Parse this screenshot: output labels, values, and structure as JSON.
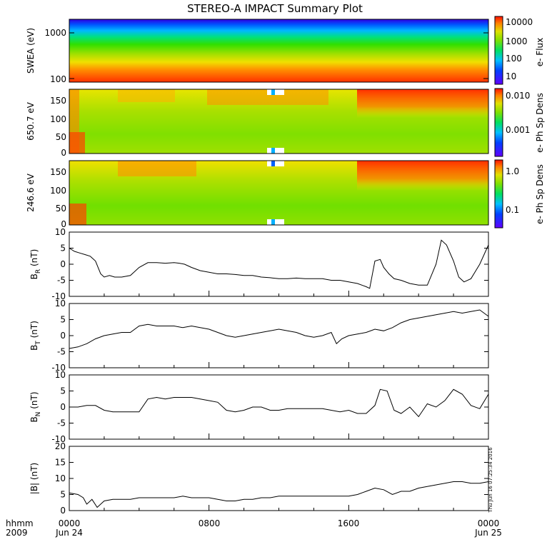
{
  "title": "STEREO-A IMPACT Summary Plot",
  "time_axis": {
    "row1_labels": [
      "0000",
      "0800",
      "1600",
      "0000"
    ],
    "row2_labels": [
      "Jun 24",
      "Jun 25"
    ],
    "corner_row1": "hhmm",
    "corner_row2": "2009",
    "hours": [
      0,
      8,
      16,
      24
    ]
  },
  "timestamp": "Thu Jun 16 07:25:34 2016",
  "spectrograms": [
    {
      "ylabel": "SWEA (eV)",
      "cbar_label": "e- Flux",
      "y_scale": "log",
      "yticks": [
        "1000",
        "100"
      ],
      "cbar_ticks": [
        "10000",
        "1000",
        "100",
        "10"
      ]
    },
    {
      "ylabel": "650.7 eV",
      "cbar_label": "e- Ph Sp Dens",
      "y_scale": "linear",
      "yticks": [
        "150",
        "100",
        "50",
        "0"
      ],
      "cbar_ticks": [
        "0.010",
        "0.001"
      ]
    },
    {
      "ylabel": "246.6 eV",
      "cbar_label": "e- Ph Sp Dens",
      "y_scale": "linear",
      "yticks": [
        "150",
        "100",
        "50",
        "0"
      ],
      "cbar_ticks": [
        "1.0",
        "0.1"
      ]
    }
  ],
  "colors": {
    "line": "#000000",
    "spectrum": [
      "#6000ff",
      "#0040ff",
      "#00c0ff",
      "#00e060",
      "#80e000",
      "#e0e000",
      "#ff8000",
      "#ff2000"
    ]
  },
  "chart_data": [
    {
      "type": "line",
      "id": "BR",
      "ylabel": "B",
      "ylabel_sub": "R",
      "ylabel_unit": " (nT)",
      "ylim": [
        -10,
        10
      ],
      "yticks": [
        "10",
        "5",
        "0",
        "-5",
        "-10"
      ],
      "x": [
        0,
        0.3,
        0.6,
        0.9,
        1.2,
        1.5,
        1.8,
        2,
        2.3,
        2.6,
        3,
        3.5,
        4,
        4.5,
        5,
        5.5,
        6,
        6.3,
        6.6,
        7,
        7.5,
        8,
        8.5,
        9,
        9.5,
        10,
        10.5,
        11,
        11.5,
        12,
        12.5,
        13,
        13.5,
        14,
        14.5,
        15,
        15.5,
        16,
        16.5,
        17,
        17.2,
        17.5,
        17.8,
        18,
        18.3,
        18.6,
        19,
        19.5,
        20,
        20.5,
        21,
        21.3,
        21.6,
        22,
        22.3,
        22.6,
        23,
        23.5,
        24
      ],
      "y": [
        5,
        4,
        3.5,
        3,
        2.5,
        1,
        -3,
        -4,
        -3.5,
        -4,
        -4,
        -3.5,
        -1,
        0.5,
        0.5,
        0.3,
        0.5,
        0.3,
        0,
        -1,
        -2,
        -2.5,
        -3,
        -3,
        -3.2,
        -3.5,
        -3.5,
        -4,
        -4.2,
        -4.5,
        -4.5,
        -4.3,
        -4.5,
        -4.5,
        -4.5,
        -5,
        -5,
        -5.5,
        -6,
        -7,
        -7.5,
        1,
        1.5,
        -1,
        -3,
        -4.5,
        -5,
        -6,
        -6.5,
        -6.5,
        0,
        7.5,
        6,
        1,
        -4,
        -5.5,
        -4.5,
        0,
        6
      ]
    },
    {
      "type": "line",
      "id": "BT",
      "ylabel": "B",
      "ylabel_sub": "T",
      "ylabel_unit": " (nT)",
      "ylim": [
        -10,
        10
      ],
      "yticks": [
        "10",
        "5",
        "0",
        "-5",
        "-10"
      ],
      "x": [
        0,
        0.5,
        1,
        1.5,
        2,
        2.5,
        3,
        3.5,
        4,
        4.5,
        5,
        5.5,
        6,
        6.5,
        7,
        7.5,
        8,
        8.5,
        9,
        9.5,
        10,
        10.5,
        11,
        11.5,
        12,
        12.5,
        13,
        13.5,
        14,
        14.5,
        15,
        15.3,
        15.6,
        16,
        16.5,
        17,
        17.5,
        18,
        18.5,
        19,
        19.5,
        20,
        20.5,
        21,
        21.5,
        22,
        22.5,
        23,
        23.5,
        24
      ],
      "y": [
        -4,
        -3.5,
        -2.5,
        -1,
        0,
        0.5,
        1,
        1,
        3,
        3.5,
        3,
        3,
        3,
        2.5,
        3,
        2.5,
        2,
        1,
        0,
        -0.5,
        0,
        0.5,
        1,
        1.5,
        2,
        1.5,
        1,
        0,
        -0.5,
        0,
        1,
        -2.5,
        -1,
        0,
        0.5,
        1,
        2,
        1.5,
        2.5,
        4,
        5,
        5.5,
        6,
        6.5,
        7,
        7.5,
        7,
        7.5,
        8,
        6
      ]
    },
    {
      "type": "line",
      "id": "BN",
      "ylabel": "B",
      "ylabel_sub": "N",
      "ylabel_unit": " (nT)",
      "ylim": [
        -10,
        10
      ],
      "yticks": [
        "10",
        "5",
        "0",
        "-5",
        "-10"
      ],
      "x": [
        0,
        0.5,
        1,
        1.5,
        2,
        2.5,
        3,
        3.5,
        4,
        4.5,
        5,
        5.5,
        6,
        6.5,
        7,
        7.5,
        8,
        8.5,
        9,
        9.5,
        10,
        10.5,
        11,
        11.5,
        12,
        12.5,
        13,
        13.5,
        14,
        14.5,
        15,
        15.5,
        16,
        16.5,
        17,
        17.5,
        17.8,
        18.2,
        18.6,
        19,
        19.5,
        20,
        20.5,
        21,
        21.5,
        22,
        22.5,
        23,
        23.5,
        24
      ],
      "y": [
        0,
        0,
        0.5,
        0.5,
        -1,
        -1.5,
        -1.5,
        -1.5,
        -1.5,
        2.5,
        3,
        2.5,
        3,
        3,
        3,
        2.5,
        2,
        1.5,
        -1,
        -1.5,
        -1,
        0,
        0,
        -1,
        -1,
        -0.5,
        -0.5,
        -0.5,
        -0.5,
        -0.5,
        -1,
        -1.5,
        -1,
        -2,
        -2,
        0.5,
        5.5,
        5,
        -1,
        -2,
        0,
        -3,
        1,
        0,
        2,
        5.5,
        4,
        0.5,
        -0.5,
        4
      ]
    },
    {
      "type": "line",
      "id": "Bmag",
      "ylabel": "|B|",
      "ylabel_sub": "",
      "ylabel_unit": " (nT)",
      "ylim": [
        0,
        20
      ],
      "yticks": [
        "20",
        "15",
        "10",
        "5",
        "0"
      ],
      "x": [
        0,
        0.5,
        0.8,
        1,
        1.3,
        1.6,
        2,
        2.5,
        3,
        3.5,
        4,
        4.5,
        5,
        5.5,
        6,
        6.5,
        7,
        7.5,
        8,
        8.5,
        9,
        9.5,
        10,
        10.5,
        11,
        11.5,
        12,
        12.5,
        13,
        13.5,
        14,
        14.5,
        15,
        15.5,
        16,
        16.5,
        17,
        17.5,
        18,
        18.5,
        19,
        19.5,
        20,
        20.5,
        21,
        21.5,
        22,
        22.5,
        23,
        23.5,
        24
      ],
      "y": [
        5.5,
        5,
        4,
        2,
        3.5,
        1,
        3,
        3.5,
        3.5,
        3.5,
        4,
        4,
        4,
        4,
        4,
        4.5,
        4,
        4,
        4,
        3.5,
        3,
        3,
        3.5,
        3.5,
        4,
        4,
        4.5,
        4.5,
        4.5,
        4.5,
        4.5,
        4.5,
        4.5,
        4.5,
        4.5,
        5,
        6,
        7,
        6.5,
        5,
        6,
        6,
        7,
        7.5,
        8,
        8.5,
        9,
        9,
        8.5,
        8.5,
        9
      ]
    }
  ]
}
